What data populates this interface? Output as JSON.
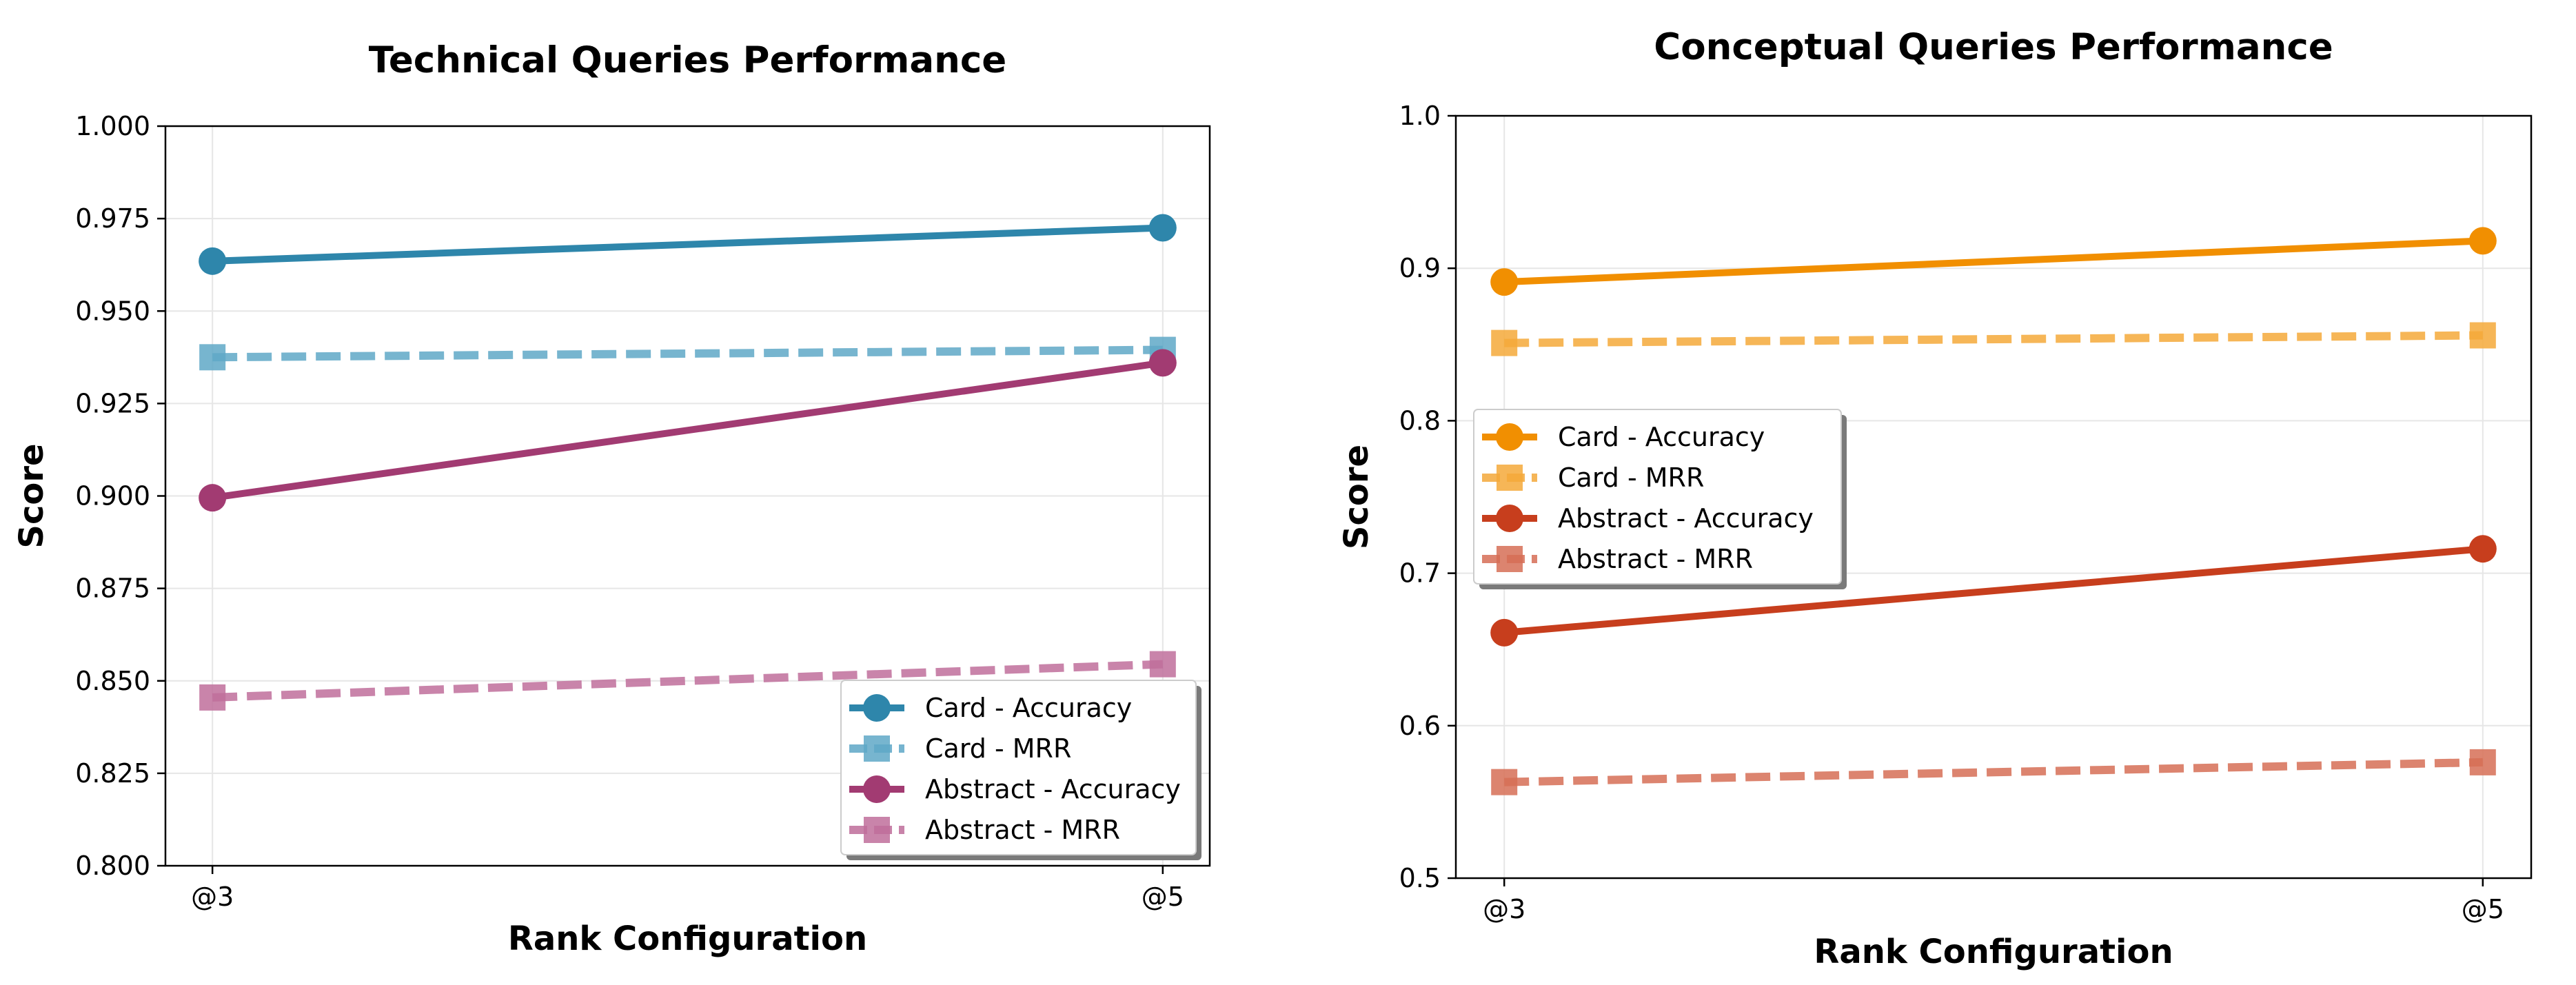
{
  "chart_data": [
    {
      "type": "line",
      "title": "Technical Queries Performance",
      "xlabel": "Rank Configuration",
      "ylabel": "Score",
      "categories": [
        "@3",
        "@5"
      ],
      "ylim": [
        0.8,
        1.0
      ],
      "yticks": [
        "0.800",
        "0.825",
        "0.850",
        "0.875",
        "0.900",
        "0.925",
        "0.950",
        "0.975",
        "1.000"
      ],
      "grid": true,
      "legend_position": "lower-right",
      "series": [
        {
          "name": "Card - Accuracy",
          "values": [
            0.9635,
            0.9725
          ],
          "color": "#2e86ab",
          "style": "solid",
          "marker": "circle"
        },
        {
          "name": "Card - MRR",
          "values": [
            0.9375,
            0.9395
          ],
          "color": "#5fa8c7",
          "style": "dashed",
          "marker": "square"
        },
        {
          "name": "Abstract - Accuracy",
          "values": [
            0.8995,
            0.936
          ],
          "color": "#a23b72",
          "style": "solid",
          "marker": "circle"
        },
        {
          "name": "Abstract - MRR",
          "values": [
            0.8455,
            0.8545
          ],
          "color": "#bf6e9b",
          "style": "dashed",
          "marker": "square"
        }
      ]
    },
    {
      "type": "line",
      "title": "Conceptual Queries Performance",
      "xlabel": "Rank Configuration",
      "ylabel": "Score",
      "categories": [
        "@3",
        "@5"
      ],
      "ylim": [
        0.5,
        1.0
      ],
      "yticks": [
        "0.5",
        "0.6",
        "0.7",
        "0.8",
        "0.9",
        "1.0"
      ],
      "grid": true,
      "legend_position": "center-left",
      "series": [
        {
          "name": "Card - Accuracy",
          "values": [
            0.891,
            0.918
          ],
          "color": "#f18f01",
          "style": "solid",
          "marker": "circle"
        },
        {
          "name": "Card - MRR",
          "values": [
            0.851,
            0.856
          ],
          "color": "#f4a93a",
          "style": "dashed",
          "marker": "square"
        },
        {
          "name": "Abstract - Accuracy",
          "values": [
            0.661,
            0.716
          ],
          "color": "#c73e1d",
          "style": "solid",
          "marker": "circle"
        },
        {
          "name": "Abstract - MRR",
          "values": [
            0.563,
            0.576
          ],
          "color": "#d66e56",
          "style": "dashed",
          "marker": "square"
        }
      ]
    }
  ]
}
